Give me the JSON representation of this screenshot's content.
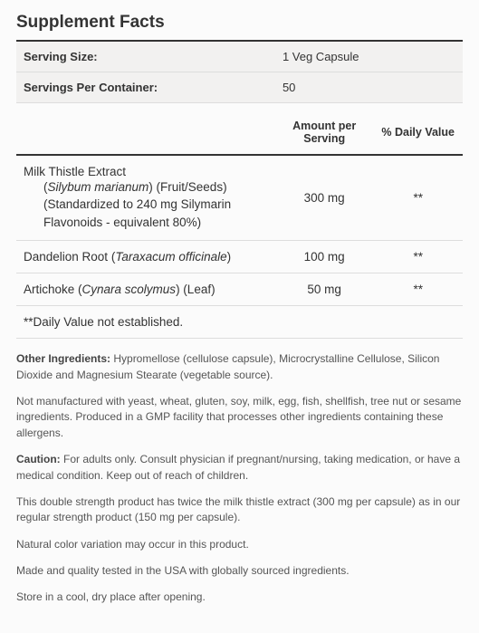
{
  "title": "Supplement Facts",
  "serving": {
    "size_label": "Serving Size:",
    "size_value": "1 Veg Capsule",
    "per_container_label": "Servings Per Container:",
    "per_container_value": "50"
  },
  "headers": {
    "name": "",
    "amount": "Amount per Serving",
    "dv": "% Daily Value"
  },
  "ingredients": [
    {
      "name_line1": "Milk Thistle Extract",
      "name_line2_pre": "(",
      "name_line2_sci": "Silybum marianum",
      "name_line2_post": ") (Fruit/Seeds)",
      "name_line3": "(Standardized to 240 mg Silymarin",
      "name_line4": "Flavonoids - equivalent 80%)",
      "amount": "300 mg",
      "dv": "**"
    },
    {
      "name_line1_pre": "Dandelion Root (",
      "name_line1_sci": "Taraxacum officinale",
      "name_line1_post": ")",
      "amount": "100 mg",
      "dv": "**"
    },
    {
      "name_line1_pre": "Artichoke (",
      "name_line1_sci": "Cynara scolymus",
      "name_line1_post": ") (Leaf)",
      "amount": "50 mg",
      "dv": "**"
    }
  ],
  "footnote": "**Daily Value not established.",
  "notes": {
    "other_label": "Other Ingredients:",
    "other_text": " Hypromellose (cellulose capsule), Microcrystalline Cellulose, Silicon Dioxide and Magnesium Stearate (vegetable source).",
    "allergen": "Not manufactured with yeast, wheat, gluten, soy, milk, egg, fish, shellfish, tree nut or sesame ingredients. Produced in a GMP facility that processes other ingredients containing these allergens.",
    "caution_label": "Caution:",
    "caution_text": " For adults only. Consult physician if pregnant/nursing, taking medication, or have a medical condition. Keep out of reach of children.",
    "strength": "This double strength product has twice the milk thistle extract (300 mg per capsule) as in our regular strength product (150 mg per capsule).",
    "color": "Natural color variation may occur in this product.",
    "origin": "Made and quality tested in the USA with globally sourced ingredients.",
    "storage": "Store in a cool, dry place after opening."
  },
  "columns": {
    "name_pct": "58%",
    "amount_pct": "22%",
    "dv_pct": "20%"
  }
}
